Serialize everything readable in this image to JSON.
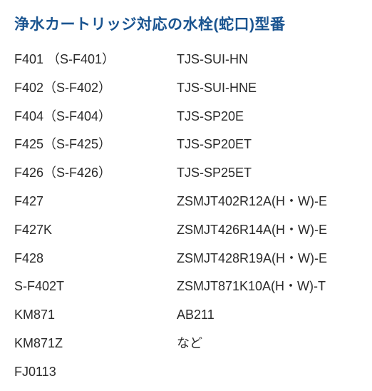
{
  "title": "浄水カートリッジ対応の水栓(蛇口)型番",
  "title_color": "#1a5490",
  "text_color": "#2a2a2a",
  "background_color": "#ffffff",
  "title_fontsize": 21,
  "item_fontsize": 18,
  "line_height": 39.8,
  "left_column": [
    "F401 （S-F401）",
    "F402（S-F402）",
    "F404（S-F404）",
    "F425（S-F425）",
    "F426（S-F426）",
    "F427",
    "F427K",
    "F428",
    "S-F402T",
    "KM871",
    "KM871Z",
    "FJ0113"
  ],
  "right_column": [
    "TJS-SUI-HN",
    "TJS-SUI-HNE",
    "TJS-SP20E",
    "TJS-SP20ET",
    "TJS-SP25ET",
    "ZSMJT402R12A(H・W)-E",
    "ZSMJT426R14A(H・W)-E",
    "ZSMJT428R19A(H・W)-E",
    "ZSMJT871K10A(H・W)-T",
    "AB211",
    "など"
  ]
}
